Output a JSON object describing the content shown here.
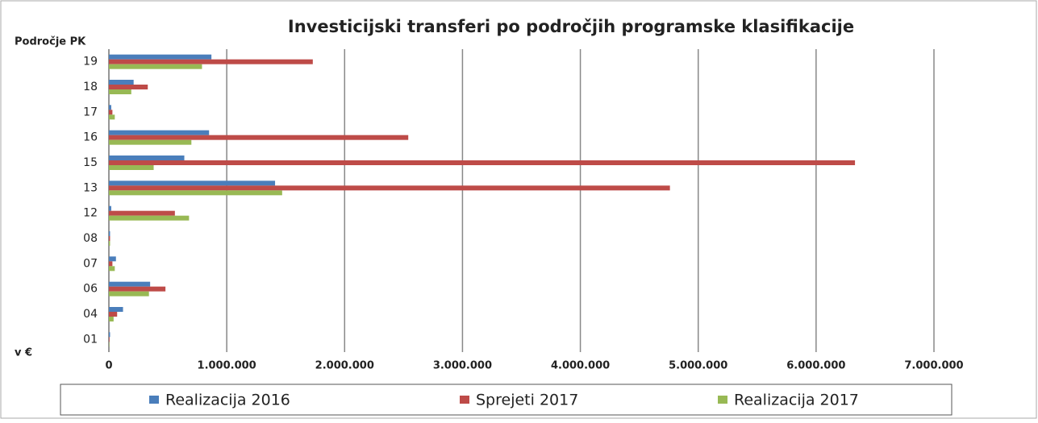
{
  "chart_data": {
    "type": "hbar",
    "title": "Investicijski transferi po področjih programske klasifikacije",
    "y_label": "Področje PK",
    "x_label": "v €",
    "categories": [
      "19",
      "18",
      "17",
      "16",
      "15",
      "13",
      "12",
      "08",
      "07",
      "06",
      "04",
      "01"
    ],
    "series": [
      {
        "name": "Realizacija 2016",
        "color": "#4a7ebb",
        "values": [
          870000,
          210000,
          20000,
          850000,
          640000,
          1410000,
          20000,
          10000,
          60000,
          350000,
          120000,
          10000
        ]
      },
      {
        "name": "Sprejeti 2017",
        "color": "#be4b48",
        "values": [
          1730000,
          330000,
          30000,
          2540000,
          6330000,
          4760000,
          560000,
          10000,
          30000,
          480000,
          70000,
          5000
        ]
      },
      {
        "name": "Realizacija 2017",
        "color": "#98b954",
        "values": [
          790000,
          190000,
          50000,
          700000,
          380000,
          1470000,
          680000,
          10000,
          50000,
          340000,
          40000,
          3000
        ]
      }
    ],
    "xlim": [
      0,
      7000000
    ],
    "xticks": [
      0,
      {
        "value": 1000000,
        "label": "1.000.000"
      },
      {
        "value": 2000000,
        "label": "2.000.000"
      },
      {
        "value": 3000000,
        "label": "3.000.000"
      },
      {
        "value": 4000000,
        "label": "4.000.000"
      },
      {
        "value": 5000000,
        "label": "5.000.000"
      },
      {
        "value": 6000000,
        "label": "6.000.000"
      },
      {
        "value": 7000000,
        "label": "7.000.000"
      }
    ],
    "grid": true,
    "legend": "bottom"
  }
}
